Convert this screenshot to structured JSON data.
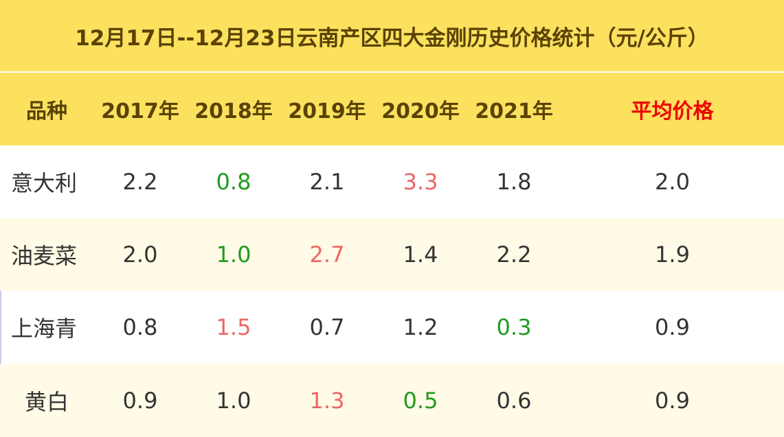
{
  "title": "12月17日--12月23日云南产区四大金刚历史价格统计（元/公斤）",
  "header": {
    "variety": "品种",
    "years": [
      "2017年",
      "2018年",
      "2019年",
      "2020年",
      "2021年"
    ],
    "average": "平均价格"
  },
  "rows": [
    {
      "name": "意大利",
      "values": [
        "2.2",
        "0.8",
        "2.1",
        "3.3",
        "1.8"
      ],
      "tones": [
        "dark",
        "green",
        "dark",
        "red",
        "dark"
      ],
      "average": "2.0"
    },
    {
      "name": "油麦菜",
      "values": [
        "2.0",
        "1.0",
        "2.7",
        "1.4",
        "2.2"
      ],
      "tones": [
        "dark",
        "green",
        "red",
        "dark",
        "dark"
      ],
      "average": "1.9"
    },
    {
      "name": "上海青",
      "values": [
        "0.8",
        "1.5",
        "0.7",
        "1.2",
        "0.3"
      ],
      "tones": [
        "dark",
        "red",
        "dark",
        "dark",
        "green"
      ],
      "average": "0.9"
    },
    {
      "name": "黄白",
      "values": [
        "0.9",
        "1.0",
        "1.3",
        "0.5",
        "0.6"
      ],
      "tones": [
        "dark",
        "dark",
        "red",
        "green",
        "dark"
      ],
      "average": "0.9"
    }
  ],
  "colors": {
    "header_bg": "#fbe15e",
    "header_text": "#5a4206",
    "average_header": "#ee0000",
    "high": "#ee6565",
    "low": "#1f9a1f",
    "normal": "#333333",
    "stripe": "#fffbe6"
  }
}
